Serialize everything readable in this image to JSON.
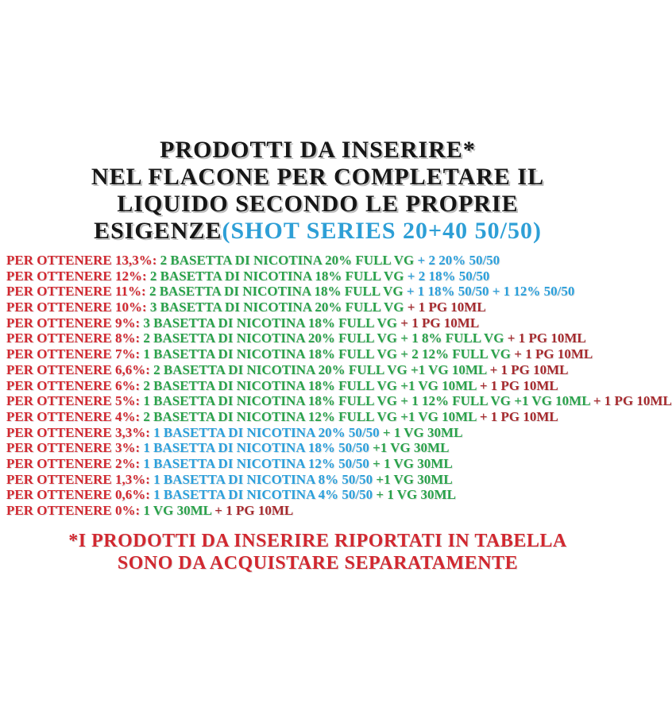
{
  "colors": {
    "red": "#d22830",
    "dark_red": "#a62a2e",
    "green": "#2aa24b",
    "blue": "#2ba0dc",
    "title_blue": "#2e9fd6",
    "black": "#161616"
  },
  "title": {
    "line1": "PRODOTTI DA INSERIRE*",
    "line2": "NEL FLACONE PER COMPLETARE IL",
    "line3": "LIQUIDO SECONDO LE PROPRIE",
    "line4_black": "ESIGENZE",
    "line4_blue": "(SHOT SERIES 20+40 50/50)"
  },
  "recipes": [
    {
      "segments": [
        {
          "text": "PER OTTENERE 13,3%: ",
          "color": "red"
        },
        {
          "text": "2 BASETTA DI NICOTINA 20% FULL VG ",
          "color": "green"
        },
        {
          "text": "+ 2 20% 50/50",
          "color": "blue"
        }
      ]
    },
    {
      "segments": [
        {
          "text": "PER OTTENERE 12%: ",
          "color": "red"
        },
        {
          "text": "2 BASETTA DI NICOTINA 18% FULL VG ",
          "color": "green"
        },
        {
          "text": "+ 2 18% 50/50",
          "color": "blue"
        }
      ]
    },
    {
      "segments": [
        {
          "text": "PER OTTENERE 11%: ",
          "color": "red"
        },
        {
          "text": "2 BASETTA DI NICOTINA 18% FULL VG ",
          "color": "green"
        },
        {
          "text": "+ 1 18% 50/50 + 1 12% 50/50",
          "color": "blue"
        }
      ]
    },
    {
      "segments": [
        {
          "text": "PER OTTENERE 10%: ",
          "color": "red"
        },
        {
          "text": "3 BASETTA DI NICOTINA 20% FULL VG ",
          "color": "green"
        },
        {
          "text": "+ 1 PG 10ML",
          "color": "dark_red"
        }
      ]
    },
    {
      "segments": [
        {
          "text": "PER OTTENERE 9%: ",
          "color": "red"
        },
        {
          "text": "3 BASETTA DI NICOTINA 18% FULL VG ",
          "color": "green"
        },
        {
          "text": "+ 1 PG 10ML",
          "color": "dark_red"
        }
      ]
    },
    {
      "segments": [
        {
          "text": "PER OTTENERE 8%: ",
          "color": "red"
        },
        {
          "text": "2 BASETTA DI NICOTINA 20% FULL VG + 1 8% FULL VG ",
          "color": "green"
        },
        {
          "text": "+ 1 PG 10ML",
          "color": "dark_red"
        }
      ]
    },
    {
      "segments": [
        {
          "text": "PER OTTENERE 7%: ",
          "color": "red"
        },
        {
          "text": "1 BASETTA DI NICOTINA 18% FULL VG + 2 12% FULL VG ",
          "color": "green"
        },
        {
          "text": "+ 1 PG 10ML",
          "color": "dark_red"
        }
      ]
    },
    {
      "segments": [
        {
          "text": "PER OTTENERE 6,6%: ",
          "color": "red"
        },
        {
          "text": "2 BASETTA DI NICOTINA 20% FULL VG +1 VG 10ML ",
          "color": "green"
        },
        {
          "text": "+ 1 PG 10ML",
          "color": "dark_red"
        }
      ]
    },
    {
      "segments": [
        {
          "text": "PER OTTENERE 6%: ",
          "color": "red"
        },
        {
          "text": "2 BASETTA DI NICOTINA 18% FULL VG +1 VG 10ML ",
          "color": "green"
        },
        {
          "text": "+ 1 PG 10ML",
          "color": "dark_red"
        }
      ]
    },
    {
      "segments": [
        {
          "text": "PER OTTENERE 5%: ",
          "color": "red"
        },
        {
          "text": "1 BASETTA DI NICOTINA 18% FULL VG + 1 12% FULL VG +1 VG 10ML ",
          "color": "green"
        },
        {
          "text": "+ 1 PG 10ML",
          "color": "dark_red"
        }
      ]
    },
    {
      "segments": [
        {
          "text": "PER OTTENERE 4%: ",
          "color": "red"
        },
        {
          "text": "2 BASETTA DI NICOTINA 12% FULL VG +1 VG 10ML ",
          "color": "green"
        },
        {
          "text": "+ 1 PG 10ML",
          "color": "dark_red"
        }
      ]
    },
    {
      "segments": [
        {
          "text": "PER OTTENERE 3,3%: ",
          "color": "red"
        },
        {
          "text": "1 BASETTA DI NICOTINA 20% 50/50 ",
          "color": "blue"
        },
        {
          "text": "+ 1 VG 30ML",
          "color": "green"
        }
      ]
    },
    {
      "segments": [
        {
          "text": "PER OTTENERE 3%: ",
          "color": "red"
        },
        {
          "text": "1 BASETTA DI NICOTINA 18% 50/50 ",
          "color": "blue"
        },
        {
          "text": "+1 VG 30ML",
          "color": "green"
        }
      ]
    },
    {
      "segments": [
        {
          "text": "PER OTTENERE 2%: ",
          "color": "red"
        },
        {
          "text": "1 BASETTA DI NICOTINA 12% 50/50 ",
          "color": "blue"
        },
        {
          "text": "+ 1 VG 30ML",
          "color": "green"
        }
      ]
    },
    {
      "segments": [
        {
          "text": "PER OTTENERE 1,3%: ",
          "color": "red"
        },
        {
          "text": "1 BASETTA DI NICOTINA 8% 50/50 ",
          "color": "blue"
        },
        {
          "text": "+1 VG 30ML",
          "color": "green"
        }
      ]
    },
    {
      "segments": [
        {
          "text": "PER OTTENERE 0,6%: ",
          "color": "red"
        },
        {
          "text": "1 BASETTA DI NICOTINA 4% 50/50 ",
          "color": "blue"
        },
        {
          "text": "+ 1 VG 30ML",
          "color": "green"
        }
      ]
    },
    {
      "segments": [
        {
          "text": "PER OTTENERE 0%: ",
          "color": "red"
        },
        {
          "text": "1 VG 30ML ",
          "color": "green"
        },
        {
          "text": "+ 1 PG 10ML",
          "color": "dark_red"
        }
      ]
    }
  ],
  "footer": {
    "line1": "*I PRODOTTI DA INSERIRE RIPORTATI IN TABELLA",
    "line2": "SONO DA ACQUISTARE SEPARATAMENTE"
  }
}
